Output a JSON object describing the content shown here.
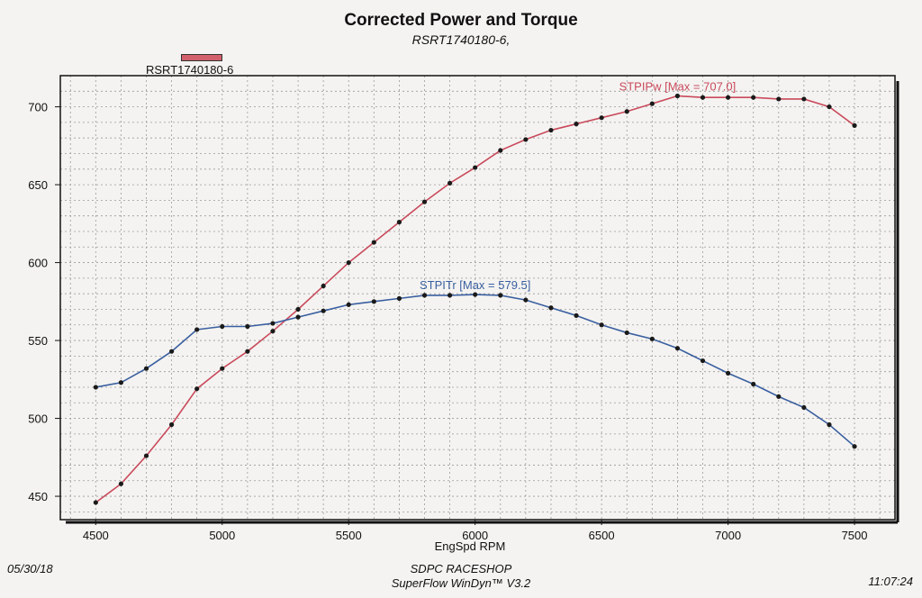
{
  "chart_data": {
    "type": "line",
    "title": "Corrected Power and Torque",
    "subtitle": "RSRT1740180-6,",
    "legend": {
      "label": "RSRT1740180-6",
      "color": "#d2606c",
      "position": "top-left"
    },
    "xlabel": "EngSpd RPM",
    "ylabel": "",
    "xlim": [
      4360,
      7660
    ],
    "ylim": [
      435,
      720
    ],
    "x_ticks": [
      4500,
      5000,
      5500,
      6000,
      6500,
      7000,
      7500
    ],
    "y_ticks": [
      450,
      500,
      550,
      600,
      650,
      700
    ],
    "grid": true,
    "x": [
      4500,
      4600,
      4700,
      4800,
      4900,
      5000,
      5100,
      5200,
      5300,
      5400,
      5500,
      5600,
      5700,
      5800,
      5900,
      6000,
      6100,
      6200,
      6300,
      6400,
      6500,
      6600,
      6700,
      6800,
      6900,
      7000,
      7100,
      7200,
      7300,
      7400,
      7500
    ],
    "series": [
      {
        "name": "STPIPw",
        "color": "#c94a5c",
        "annotation": "STPIPw [Max = 707.0]",
        "values": [
          446,
          458,
          476,
          496,
          519,
          532,
          543,
          556,
          570,
          585,
          600,
          613,
          626,
          639,
          651,
          661,
          672,
          679,
          685,
          689,
          693,
          697,
          702,
          707,
          706,
          706,
          706,
          705,
          705,
          700,
          688
        ]
      },
      {
        "name": "STPITr",
        "color": "#3a5fa0",
        "annotation": "STPITr [Max = 579.5]",
        "values": [
          520,
          523,
          532,
          543,
          557,
          559,
          559,
          561,
          565,
          569,
          573,
          575,
          577,
          579,
          579,
          579.5,
          579,
          576,
          571,
          566,
          560,
          555,
          551,
          545,
          537,
          529,
          522,
          514,
          507,
          496,
          482
        ]
      }
    ]
  },
  "footer": {
    "date": "05/30/18",
    "shop": "SDPC RACESHOP",
    "software": "SuperFlow WinDyn™ V3.2",
    "time": "11:07:24"
  }
}
